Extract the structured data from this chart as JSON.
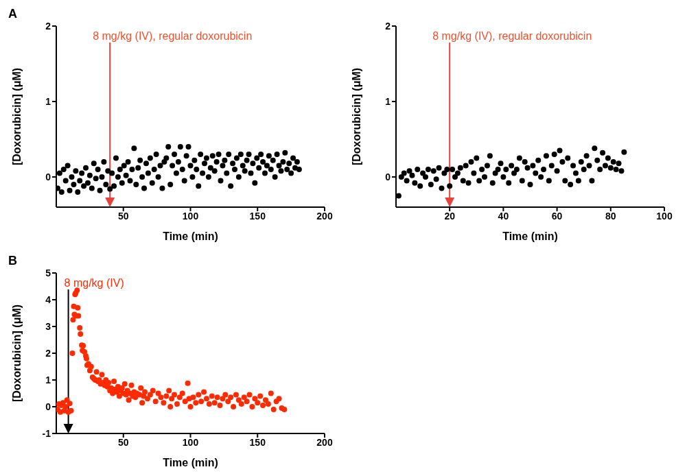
{
  "chart_data": [
    {
      "type": "scatter",
      "xlabel": "Time (min)",
      "ylabel": "[Doxorubicin] (μM)",
      "xlim": [
        0,
        200
      ],
      "xticks": [
        50,
        100,
        150,
        200
      ],
      "ylim": [
        -0.4,
        2
      ],
      "yticks": [
        0,
        1,
        2
      ],
      "grid": false,
      "marker": "circle",
      "annotations": [
        "A"
      ],
      "ref_lines": [
        {
          "axis": "x",
          "value": 40,
          "label": "8 mg/kg (IV), regular doxorubicin",
          "color": "#e8413a"
        }
      ],
      "series": [
        {
          "color": "#000000",
          "x": [
            1,
            2.5,
            4,
            5.5,
            7,
            8.5,
            10,
            11.5,
            13,
            14.5,
            16,
            17.5,
            19,
            20.5,
            22,
            23.5,
            25,
            26.5,
            28,
            29.5,
            31,
            32.5,
            34,
            35.5,
            37,
            38.5,
            40,
            41.5,
            43,
            44.5,
            46,
            47.5,
            49,
            50.5,
            52,
            53.5,
            55,
            56.5,
            58,
            59.5,
            61,
            62.5,
            64,
            65.5,
            67,
            68.5,
            70,
            71.5,
            73,
            74.5,
            76,
            77.5,
            79,
            80.5,
            82,
            83.5,
            85,
            86.5,
            88,
            89.5,
            91,
            92.5,
            94,
            95.5,
            97,
            98.5,
            100,
            101.5,
            103,
            104.5,
            106,
            107.5,
            109,
            110.5,
            112,
            113.5,
            115,
            116.5,
            118,
            119.5,
            121,
            122.5,
            124,
            125.5,
            127,
            128.5,
            130,
            131.5,
            133,
            134.5,
            136,
            137.5,
            139,
            140.5,
            142,
            143.5,
            145,
            146.5,
            148,
            149.5,
            151,
            152.5,
            154,
            155.5,
            157,
            158.5,
            160,
            161.5,
            163,
            164.5,
            166,
            167.5,
            169,
            170.5,
            172,
            173.5,
            175,
            176.5,
            178,
            179.5,
            181
          ],
          "values": [
            -0.15,
            0.05,
            -0.2,
            0.1,
            -0.05,
            0.15,
            -0.18,
            0.0,
            -0.1,
            0.08,
            -0.2,
            -0.05,
            0.05,
            -0.12,
            0.12,
            -0.08,
            0.02,
            -0.15,
            0.18,
            -0.02,
            0.1,
            -0.18,
            0.0,
            0.2,
            -0.1,
            0.08,
            -0.16,
            0.05,
            -0.12,
            0.25,
            0.0,
            0.1,
            -0.08,
            0.15,
            0.02,
            0.2,
            -0.05,
            0.1,
            0.38,
            -0.1,
            0.12,
            0.22,
            0.0,
            -0.15,
            0.18,
            0.05,
            0.25,
            -0.08,
            0.1,
            0.3,
            0.0,
            0.15,
            -0.15,
            0.2,
            0.25,
            0.4,
            -0.1,
            0.15,
            0.3,
            0.05,
            0.2,
            0.4,
            0.1,
            -0.05,
            0.28,
            0.4,
            0.15,
            0.0,
            0.22,
            0.1,
            -0.12,
            0.3,
            0.05,
            0.18,
            0.25,
            0.0,
            0.12,
            0.28,
            0.08,
            0.2,
            0.3,
            -0.05,
            0.15,
            0.22,
            0.05,
            0.3,
            -0.12,
            0.18,
            0.1,
            0.25,
            0.0,
            0.3,
            0.15,
            0.08,
            0.22,
            0.3,
            0.05,
            0.18,
            -0.08,
            0.25,
            0.12,
            0.3,
            0.2,
            0.05,
            0.15,
            0.28,
            0.1,
            0.22,
            0.0,
            0.3,
            0.15,
            0.08,
            0.2,
            0.32,
            0.1,
            0.18,
            0.05,
            0.25,
            0.12,
            0.2,
            0.1
          ]
        }
      ]
    },
    {
      "type": "scatter",
      "xlabel": "Time (min)",
      "ylabel": "[Doxorubicin] (μM)",
      "xlim": [
        0,
        100
      ],
      "xticks": [
        20,
        40,
        60,
        80,
        100
      ],
      "ylim": [
        -0.4,
        2
      ],
      "yticks": [
        0,
        1,
        2
      ],
      "grid": false,
      "marker": "circle",
      "ref_lines": [
        {
          "axis": "x",
          "value": 20,
          "label": "8 mg/kg (IV), regular doxorubicin",
          "color": "#e8413a"
        }
      ],
      "series": [
        {
          "color": "#000000",
          "x": [
            1,
            2,
            3,
            4,
            5,
            6,
            7,
            8,
            9,
            10,
            11,
            12,
            13,
            14,
            15,
            16,
            17,
            18,
            19,
            20,
            21,
            22,
            23,
            24,
            25,
            26,
            27,
            28,
            29,
            30,
            31,
            32,
            33,
            34,
            35,
            36,
            37,
            38,
            39,
            40,
            41,
            42,
            43,
            44,
            45,
            46,
            47,
            48,
            49,
            50,
            51,
            52,
            53,
            54,
            55,
            56,
            57,
            58,
            59,
            60,
            61,
            62,
            63,
            64,
            65,
            66,
            67,
            68,
            69,
            70,
            71,
            72,
            73,
            74,
            75,
            76,
            77,
            78,
            79,
            80,
            81,
            82,
            83,
            84,
            85
          ],
          "values": [
            -0.25,
            0.0,
            0.05,
            -0.05,
            0.08,
            0.02,
            -0.08,
            0.1,
            -0.12,
            0.05,
            0.0,
            0.1,
            -0.1,
            0.08,
            -0.03,
            0.12,
            -0.15,
            0.05,
            0.1,
            -0.12,
            0.1,
            0.0,
            0.05,
            0.12,
            -0.05,
            0.15,
            -0.08,
            0.2,
            0.05,
            0.25,
            -0.05,
            0.1,
            0.0,
            0.15,
            0.28,
            -0.08,
            0.05,
            0.1,
            0.18,
            0.0,
            0.1,
            -0.08,
            0.15,
            0.05,
            0.1,
            0.25,
            -0.05,
            0.2,
            0.12,
            -0.1,
            0.15,
            0.05,
            0.22,
            0.0,
            0.1,
            0.28,
            -0.05,
            0.15,
            0.3,
            0.08,
            0.35,
            0.2,
            -0.05,
            0.25,
            -0.1,
            0.15,
            0.05,
            -0.05,
            0.2,
            0.1,
            0.28,
            0.15,
            -0.05,
            0.38,
            0.22,
            0.1,
            0.32,
            0.15,
            0.25,
            0.12,
            0.2,
            0.1,
            0.18,
            0.08,
            0.33
          ]
        }
      ]
    },
    {
      "type": "scatter",
      "xlabel": "Time (min)",
      "ylabel": "[Doxorubicin] (μM)",
      "xlim": [
        0,
        200
      ],
      "xticks": [
        50,
        100,
        150,
        200
      ],
      "ylim": [
        -1,
        5
      ],
      "yticks": [
        -1,
        0,
        1,
        2,
        3,
        4,
        5
      ],
      "grid": false,
      "marker": "circle",
      "annotations": [
        "B"
      ],
      "ref_lines": [
        {
          "axis": "x",
          "value": 9,
          "label": "8 mg/kg (IV)",
          "color": "#000000"
        }
      ],
      "series": [
        {
          "color": "#ff2a00",
          "x": [
            1,
            2,
            3,
            4,
            5,
            6,
            7,
            8,
            9,
            10,
            11,
            12,
            12.5,
            13,
            13.5,
            14,
            14.5,
            15,
            15.5,
            16,
            16.5,
            17.5,
            18,
            19,
            19.5,
            20,
            21,
            22,
            22.5,
            23,
            24,
            25,
            26,
            27,
            28,
            29,
            30,
            31,
            32,
            33,
            34,
            35,
            36,
            37,
            38,
            39,
            40,
            41,
            42,
            43,
            44,
            45,
            46,
            47,
            48,
            49,
            50,
            51,
            52,
            53,
            54,
            55,
            56,
            57,
            58,
            59,
            60,
            62,
            63,
            64,
            65,
            66,
            68,
            70,
            72,
            74,
            76,
            78,
            80,
            82,
            84,
            85,
            86,
            88,
            90,
            92,
            94,
            96,
            98,
            99,
            100,
            102,
            104,
            106,
            108,
            110,
            112,
            114,
            116,
            118,
            120,
            122,
            124,
            126,
            128,
            130,
            132,
            134,
            136,
            138,
            140,
            142,
            144,
            146,
            148,
            150,
            152,
            154,
            156,
            158,
            160,
            162,
            164,
            166,
            168,
            170
          ],
          "values": [
            -0.1,
            0.1,
            -0.2,
            0.05,
            0.15,
            -0.15,
            0.0,
            0.25,
            -0.2,
            0.12,
            -0.15,
            2.0,
            3.25,
            3.75,
            3.45,
            4.2,
            4.25,
            3.4,
            4.35,
            3.7,
            3.4,
            2.95,
            2.72,
            2.3,
            2.1,
            2.28,
            2.05,
            1.9,
            1.8,
            1.55,
            1.6,
            1.35,
            1.5,
            1.1,
            1.05,
            1.0,
            1.3,
            0.95,
            1.0,
            0.85,
            1.2,
            0.9,
            0.8,
            1.0,
            0.75,
            0.9,
            0.6,
            0.7,
            0.5,
            0.95,
            0.65,
            0.55,
            0.75,
            0.4,
            0.6,
            0.7,
            0.5,
            0.85,
            0.45,
            0.6,
            0.25,
            0.5,
            0.8,
            0.4,
            0.55,
            0.35,
            0.5,
            0.45,
            0.7,
            0.15,
            0.4,
            0.55,
            0.3,
            0.45,
            0.6,
            0.2,
            0.5,
            0.35,
            0.15,
            0.4,
            0.6,
            0.0,
            0.3,
            0.45,
            0.1,
            0.35,
            0.5,
            0.2,
            0.88,
            0.3,
            0.0,
            0.35,
            0.15,
            0.45,
            0.2,
            0.55,
            0.3,
            0.1,
            0.4,
            0.15,
            0.35,
            0.05,
            0.3,
            0.45,
            0.2,
            0.35,
            0.0,
            0.45,
            0.25,
            0.1,
            0.35,
            0.2,
            0.45,
            0.0,
            0.3,
            0.15,
            0.4,
            0.05,
            0.25,
            0.1,
            0.5,
            -0.1,
            0.2,
            0.3,
            -0.05,
            -0.1
          ]
        }
      ]
    }
  ]
}
